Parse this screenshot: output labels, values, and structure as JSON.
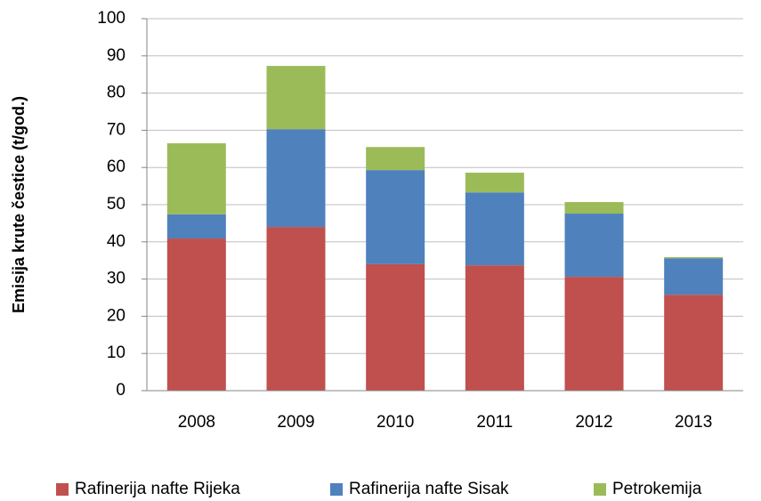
{
  "chart_data": {
    "type": "bar",
    "stacked": true,
    "y_label": "Emisija krute čestice (t/god.)",
    "categories": [
      "2008",
      "2009",
      "2010",
      "2011",
      "2012",
      "2013"
    ],
    "series": [
      {
        "name": "Rafinerija nafte Rijeka",
        "color": "#c0504d",
        "values": [
          40.9,
          44,
          34,
          33.7,
          30.6,
          25.8
        ]
      },
      {
        "name": "Rafinerija nafte Sisak",
        "color": "#4f81bd",
        "values": [
          6.5,
          26.3,
          25.3,
          19.6,
          17,
          9.8
        ]
      },
      {
        "name": "Petrokemija",
        "color": "#9bbb59",
        "values": [
          19.1,
          17,
          6.2,
          5.3,
          3.1,
          0.3
        ]
      }
    ],
    "ylim": [
      0,
      100
    ],
    "yticks": [
      0,
      10,
      20,
      30,
      40,
      50,
      60,
      70,
      80,
      90,
      100
    ],
    "grid": true,
    "legend": "bottom"
  }
}
